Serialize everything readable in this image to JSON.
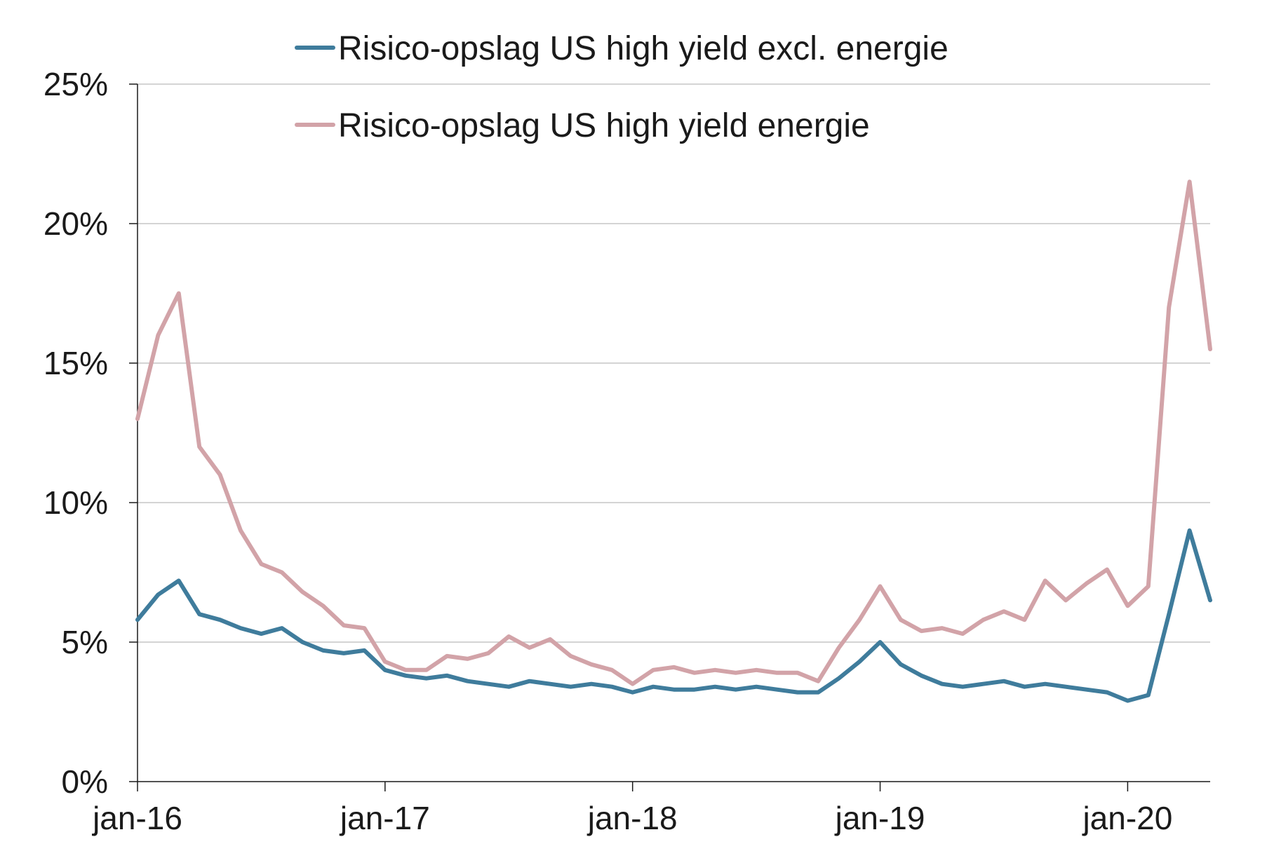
{
  "chart_data": {
    "type": "line",
    "title": "",
    "xlabel": "",
    "ylabel": "",
    "x_ticks": [
      "jan-16",
      "jan-17",
      "jan-18",
      "jan-19",
      "jan-20"
    ],
    "x_range": [
      "2016-01",
      "2020-05"
    ],
    "y_ticks": [
      "0%",
      "5%",
      "10%",
      "15%",
      "20%",
      "25%"
    ],
    "ylim": [
      0,
      25
    ],
    "grid": "horizontal",
    "legend_position": "top-center",
    "colors": {
      "excl": "#3f7c9c",
      "energie": "#d2a3a8"
    },
    "series": [
      {
        "name": "Risico-opslag US high yield excl. energie",
        "x": [
          "2016-01",
          "2016-02",
          "2016-03",
          "2016-04",
          "2016-05",
          "2016-06",
          "2016-07",
          "2016-08",
          "2016-09",
          "2016-10",
          "2016-11",
          "2016-12",
          "2017-01",
          "2017-02",
          "2017-03",
          "2017-04",
          "2017-05",
          "2017-06",
          "2017-07",
          "2017-08",
          "2017-09",
          "2017-10",
          "2017-11",
          "2017-12",
          "2018-01",
          "2018-02",
          "2018-03",
          "2018-04",
          "2018-05",
          "2018-06",
          "2018-07",
          "2018-08",
          "2018-09",
          "2018-10",
          "2018-11",
          "2018-12",
          "2019-01",
          "2019-02",
          "2019-03",
          "2019-04",
          "2019-05",
          "2019-06",
          "2019-07",
          "2019-08",
          "2019-09",
          "2019-10",
          "2019-11",
          "2019-12",
          "2020-01",
          "2020-02",
          "2020-03",
          "2020-04",
          "2020-05"
        ],
        "values": [
          5.8,
          6.7,
          7.2,
          6.0,
          5.8,
          5.5,
          5.3,
          5.5,
          5.0,
          4.7,
          4.6,
          4.7,
          4.0,
          3.8,
          3.7,
          3.8,
          3.6,
          3.5,
          3.4,
          3.6,
          3.5,
          3.4,
          3.5,
          3.4,
          3.2,
          3.4,
          3.3,
          3.3,
          3.4,
          3.3,
          3.4,
          3.3,
          3.2,
          3.2,
          3.7,
          4.3,
          5.0,
          4.2,
          3.8,
          3.5,
          3.4,
          3.5,
          3.6,
          3.4,
          3.5,
          3.4,
          3.3,
          3.2,
          2.9,
          3.1,
          6.0,
          9.0,
          6.5
        ]
      },
      {
        "name": "Risico-opslag US high yield energie",
        "x": [
          "2016-01",
          "2016-02",
          "2016-03",
          "2016-04",
          "2016-05",
          "2016-06",
          "2016-07",
          "2016-08",
          "2016-09",
          "2016-10",
          "2016-11",
          "2016-12",
          "2017-01",
          "2017-02",
          "2017-03",
          "2017-04",
          "2017-05",
          "2017-06",
          "2017-07",
          "2017-08",
          "2017-09",
          "2017-10",
          "2017-11",
          "2017-12",
          "2018-01",
          "2018-02",
          "2018-03",
          "2018-04",
          "2018-05",
          "2018-06",
          "2018-07",
          "2018-08",
          "2018-09",
          "2018-10",
          "2018-11",
          "2018-12",
          "2019-01",
          "2019-02",
          "2019-03",
          "2019-04",
          "2019-05",
          "2019-06",
          "2019-07",
          "2019-08",
          "2019-09",
          "2019-10",
          "2019-11",
          "2019-12",
          "2020-01",
          "2020-02",
          "2020-03",
          "2020-04",
          "2020-05"
        ],
        "values": [
          13.0,
          16.0,
          17.5,
          12.0,
          11.0,
          9.0,
          7.8,
          7.5,
          6.8,
          6.3,
          5.6,
          5.5,
          4.3,
          4.0,
          4.0,
          4.5,
          4.4,
          4.6,
          5.2,
          4.8,
          5.1,
          4.5,
          4.2,
          4.0,
          3.5,
          4.0,
          4.1,
          3.9,
          4.0,
          3.9,
          4.0,
          3.9,
          3.9,
          3.6,
          4.8,
          5.8,
          7.0,
          5.8,
          5.4,
          5.5,
          5.3,
          5.8,
          6.1,
          5.8,
          7.2,
          6.5,
          7.1,
          7.6,
          6.3,
          7.0,
          17.0,
          21.5,
          15.5
        ]
      }
    ]
  }
}
